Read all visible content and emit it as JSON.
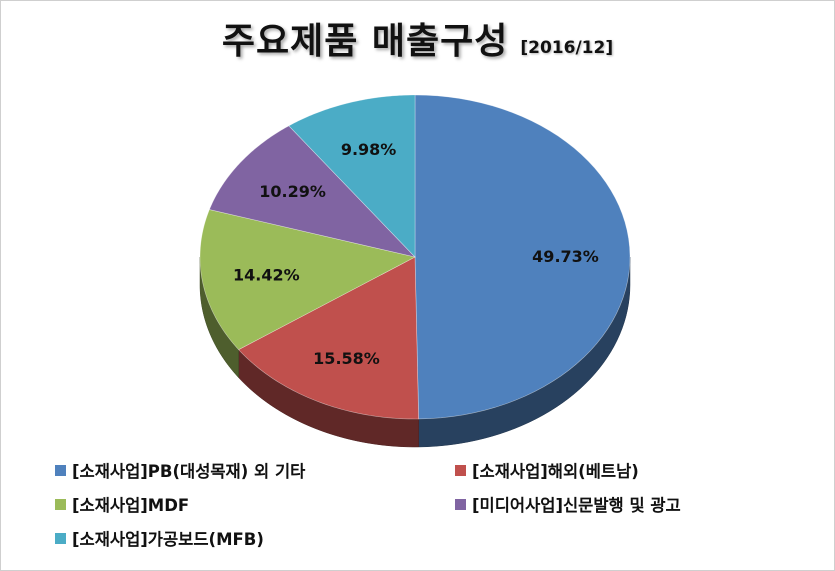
{
  "chart_data": {
    "type": "pie",
    "title": "주요제품 매출구성",
    "subtitle": "[2016/12]",
    "legend_position": "bottom",
    "slices": [
      {
        "name": "[소재사업]PB(대성목재) 외 기타",
        "value": 49.73,
        "label": "49.73%",
        "color": "#4f81bd"
      },
      {
        "name": "[소재사업]해외(베트남)",
        "value": 15.58,
        "label": "15.58%",
        "color": "#c0504d"
      },
      {
        "name": "[소재사업]MDF",
        "value": 14.42,
        "label": "14.42%",
        "color": "#9bbb59"
      },
      {
        "name": "[미디어사업]신문발행 및 광고",
        "value": 10.29,
        "label": "10.29%",
        "color": "#8064a2"
      },
      {
        "name": "[소재사업]가공보드(MFB)",
        "value": 9.98,
        "label": "9.98%",
        "color": "#4bacc6"
      }
    ]
  }
}
